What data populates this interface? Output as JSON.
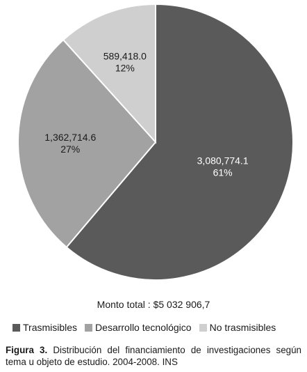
{
  "chart_data": {
    "type": "pie",
    "slices": [
      {
        "name": "Trasmisibles",
        "value": 3080774.1,
        "value_label": "3,080,774.1",
        "percent_label": "61%",
        "color": "#5a5a5a"
      },
      {
        "name": "Desarrollo tecnológico",
        "value": 1362714.6,
        "value_label": "1,362,714.6",
        "percent_label": "27%",
        "color": "#a2a2a2"
      },
      {
        "name": "No trasmisibles",
        "value": 589418.0,
        "value_label": "589,418.0",
        "percent_label": "12%",
        "color": "#cfcfcf"
      }
    ],
    "start": "top",
    "direction": "clockwise",
    "legend_position": "bottom"
  },
  "total_label": "Monto total :  $5  032 906,7",
  "legend": [
    {
      "label": "Trasmisibles",
      "color": "#5a5a5a"
    },
    {
      "label": "Desarrollo tecnológico",
      "color": "#a2a2a2"
    },
    {
      "label": "No trasmisibles",
      "color": "#cfcfcf"
    }
  ],
  "caption": {
    "figure_label": "Figura 3.",
    "text": " Distribución del financiamiento de investigaciones según tema u objeto de estudio. 2004-2008. INS"
  }
}
